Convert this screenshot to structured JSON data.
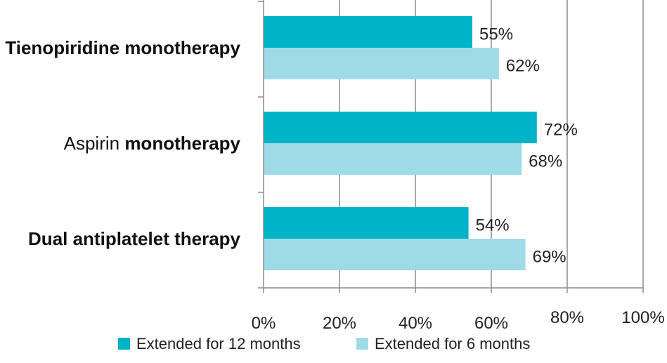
{
  "chart_data": {
    "type": "bar",
    "orientation": "horizontal",
    "categories": [
      {
        "label_parts": [
          {
            "text": "Tienopiridine monotherapy",
            "bold": true
          }
        ]
      },
      {
        "label_parts": [
          {
            "text": "Aspirin ",
            "bold": false
          },
          {
            "text": "monotherapy",
            "bold": true
          }
        ]
      },
      {
        "label_parts": [
          {
            "text": "Dual antiplatelet therapy",
            "bold": true
          }
        ]
      }
    ],
    "series": [
      {
        "name": "Extended for 12 months",
        "color": "#00b3c8",
        "values": [
          55,
          72,
          54
        ],
        "labels": [
          "55%",
          "72%",
          "54%"
        ]
      },
      {
        "name": "Extended for 6 months",
        "color": "#9fdbe6",
        "values": [
          62,
          68,
          69
        ],
        "labels": [
          "62%",
          "68%",
          "69%"
        ]
      }
    ],
    "xlim": [
      0,
      100
    ],
    "xticks": [
      "0%",
      "20%",
      "40%",
      "60%",
      "80%",
      "100%"
    ],
    "grid": true,
    "legend_position": "bottom"
  }
}
